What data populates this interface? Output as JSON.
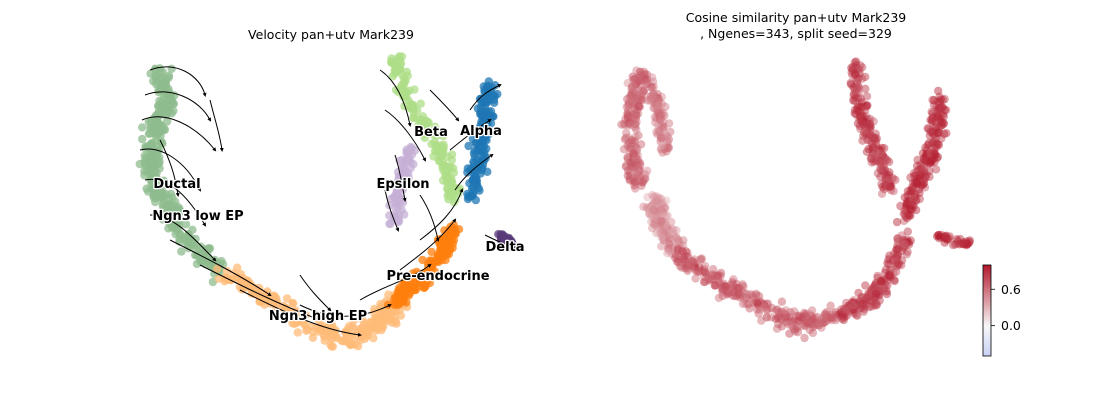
{
  "chart_data": [
    {
      "type": "scatter",
      "title": "Velocity pan+utv Mark239",
      "xlabel": "",
      "ylabel": "",
      "grid": false,
      "legend": "on data",
      "clusters": [
        {
          "name": "Ductal",
          "color": "#8fbc8f"
        },
        {
          "name": "Ngn3 low EP",
          "color": "#8fbc8f"
        },
        {
          "name": "Ngn3 high EP",
          "color": "#ffbb78"
        },
        {
          "name": "Pre-endocrine",
          "color": "#ff7f0e"
        },
        {
          "name": "Beta",
          "color": "#aedd87"
        },
        {
          "name": "Alpha",
          "color": "#1f77b4"
        },
        {
          "name": "Delta",
          "color": "#5a3b7a"
        },
        {
          "name": "Epsilon",
          "color": "#c5b0d5"
        }
      ]
    },
    {
      "type": "scatter",
      "title_line1": "Cosine similarity pan+utv Mark239",
      "title_line2": ", Ngenes=343, split seed=329",
      "xlabel": "",
      "ylabel": "",
      "grid": false,
      "colorbar": {
        "ticks": [
          {
            "value": 0.6,
            "label": "0.6"
          },
          {
            "value": 0.0,
            "label": "0.0"
          }
        ],
        "vmin": -0.5,
        "vmax": 1.0,
        "low_color": "#c8d2f5",
        "mid_color": "#f7f7f7",
        "high_color": "#b2182b"
      }
    }
  ]
}
